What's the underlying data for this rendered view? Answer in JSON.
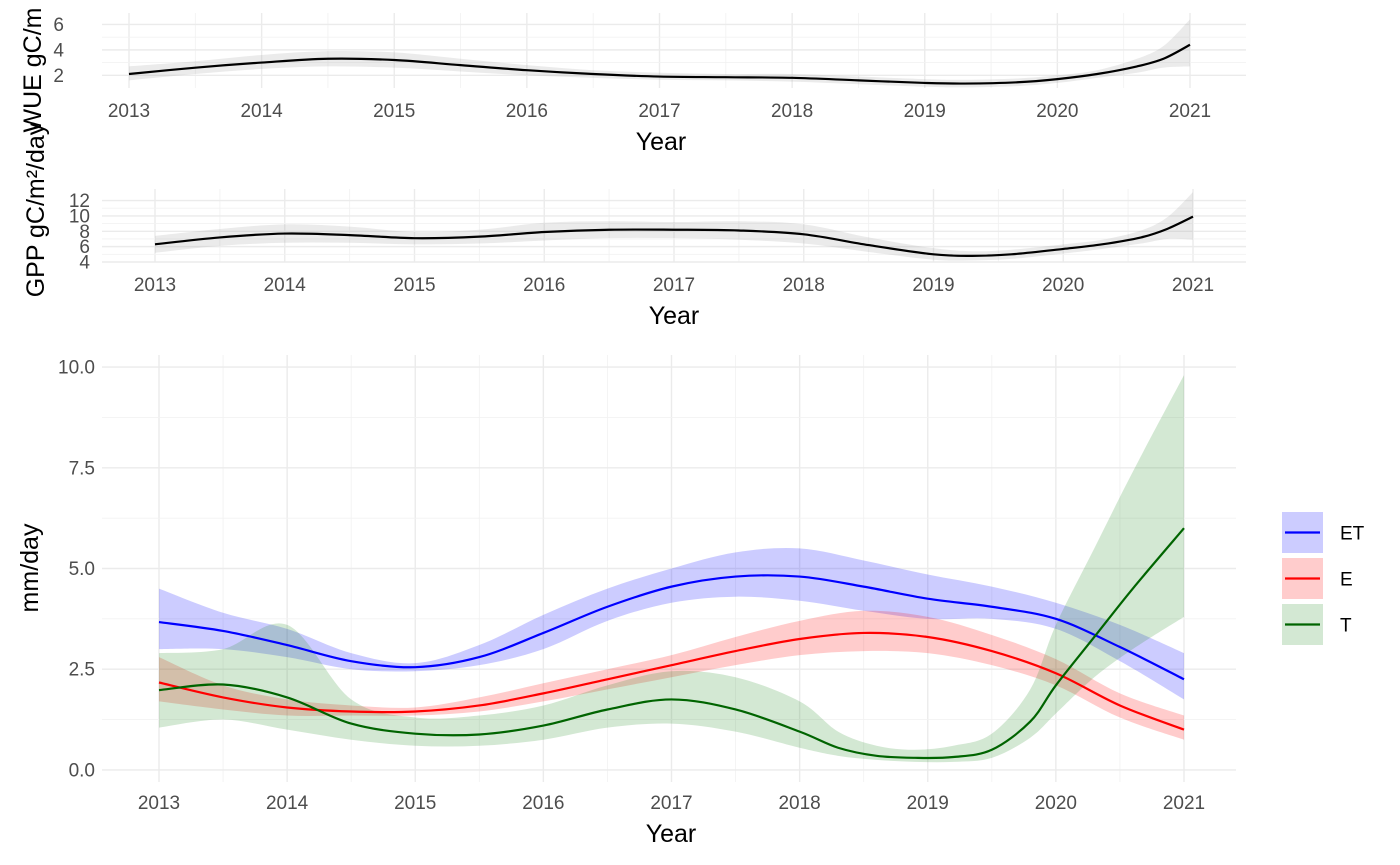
{
  "chart_data": [
    {
      "type": "line",
      "panel": "wue",
      "xlabel": "Year",
      "ylabel": "WUE gC/m",
      "x_ticks": [
        "2013",
        "2014",
        "2015",
        "2016",
        "2017",
        "2018",
        "2019",
        "2020",
        "2021"
      ],
      "y_ticks": [
        "2",
        "4",
        "6"
      ],
      "xlim": [
        2013,
        2021
      ],
      "ylim": [
        1.0,
        6.9
      ],
      "grid": true,
      "series": [
        {
          "color": "#000000",
          "band_color": "#999999",
          "x": [
            2013,
            2013.5,
            2014,
            2014.5,
            2015,
            2015.5,
            2016,
            2016.5,
            2017,
            2017.5,
            2018,
            2018.5,
            2019,
            2019.3,
            2019.7,
            2020,
            2020.3,
            2020.6,
            2020.8,
            2021
          ],
          "y": [
            2.1,
            2.6,
            3.0,
            3.3,
            3.2,
            2.8,
            2.4,
            2.1,
            1.9,
            1.85,
            1.8,
            1.6,
            1.4,
            1.35,
            1.45,
            1.7,
            2.1,
            2.7,
            3.3,
            4.4
          ],
          "lower": [
            1.6,
            2.1,
            2.5,
            2.7,
            2.6,
            2.3,
            2.0,
            1.8,
            1.65,
            1.6,
            1.5,
            1.3,
            1.1,
            1.05,
            1.15,
            1.4,
            1.8,
            2.2,
            2.6,
            2.7
          ],
          "upper": [
            2.7,
            3.1,
            3.6,
            3.9,
            3.8,
            3.3,
            2.8,
            2.4,
            2.2,
            2.1,
            2.1,
            1.9,
            1.7,
            1.65,
            1.75,
            2.0,
            2.4,
            3.3,
            4.3,
            6.4
          ]
        }
      ]
    },
    {
      "type": "line",
      "panel": "gpp",
      "xlabel": "Year",
      "ylabel": "GPP gC/m²/day",
      "x_ticks": [
        "2013",
        "2014",
        "2015",
        "2016",
        "2017",
        "2018",
        "2019",
        "2020",
        "2021"
      ],
      "y_ticks": [
        "4",
        "6",
        "8",
        "10",
        "12"
      ],
      "xlim": [
        2013,
        2021
      ],
      "ylim": [
        4,
        13.5
      ],
      "grid": true,
      "series": [
        {
          "color": "#000000",
          "band_color": "#999999",
          "x": [
            2013,
            2013.5,
            2014,
            2014.5,
            2015,
            2015.5,
            2016,
            2016.5,
            2017,
            2017.5,
            2018,
            2018.5,
            2019,
            2019.3,
            2019.6,
            2020,
            2020.3,
            2020.6,
            2020.8,
            2021
          ],
          "y": [
            6.3,
            7.2,
            7.7,
            7.5,
            7.1,
            7.3,
            7.9,
            8.2,
            8.2,
            8.1,
            7.6,
            6.2,
            5.0,
            4.8,
            5.0,
            5.7,
            6.3,
            7.2,
            8.3,
            9.9
          ],
          "lower": [
            5.2,
            6.1,
            6.5,
            6.5,
            6.3,
            6.4,
            6.8,
            7.1,
            7.1,
            6.9,
            6.4,
            5.3,
            4.3,
            4.2,
            4.4,
            5.1,
            5.7,
            6.4,
            7.0,
            6.9
          ],
          "upper": [
            7.4,
            8.3,
            8.9,
            8.6,
            7.9,
            8.2,
            9.1,
            9.3,
            9.2,
            9.3,
            8.9,
            7.2,
            5.8,
            5.4,
            5.6,
            6.3,
            6.9,
            8.1,
            9.8,
            13.1
          ]
        }
      ]
    },
    {
      "type": "line",
      "panel": "et",
      "xlabel": "Year",
      "ylabel": "mm/day",
      "x_ticks": [
        "2013",
        "2014",
        "2015",
        "2016",
        "2017",
        "2018",
        "2019",
        "2020",
        "2021"
      ],
      "y_ticks": [
        "0.0",
        "2.5",
        "5.0",
        "7.5",
        "10.0"
      ],
      "xlim": [
        2013,
        2021
      ],
      "ylim": [
        -0.3,
        10.3
      ],
      "grid": true,
      "legend_position": "right",
      "series": [
        {
          "name": "ET",
          "color": "#0000ff",
          "band_color": "#0000ff",
          "x": [
            2013,
            2013.5,
            2014,
            2014.5,
            2015,
            2015.5,
            2016,
            2016.5,
            2017,
            2017.5,
            2018,
            2018.5,
            2019,
            2019.5,
            2020,
            2020.5,
            2021
          ],
          "y": [
            3.67,
            3.45,
            3.1,
            2.7,
            2.55,
            2.8,
            3.4,
            4.05,
            4.55,
            4.8,
            4.8,
            4.55,
            4.25,
            4.05,
            3.75,
            3.05,
            2.25
          ],
          "lower": [
            3.0,
            3.0,
            2.8,
            2.5,
            2.45,
            2.6,
            3.0,
            3.7,
            4.15,
            4.3,
            4.2,
            3.95,
            3.75,
            3.75,
            3.5,
            2.7,
            1.75
          ],
          "upper": [
            4.5,
            3.9,
            3.5,
            2.9,
            2.65,
            3.1,
            3.85,
            4.5,
            5.0,
            5.4,
            5.5,
            5.2,
            4.85,
            4.55,
            4.15,
            3.6,
            2.9
          ]
        },
        {
          "name": "E",
          "color": "#ff0000",
          "band_color": "#ff0000",
          "x": [
            2013,
            2013.5,
            2014,
            2014.5,
            2015,
            2015.5,
            2016,
            2016.5,
            2017,
            2017.5,
            2018,
            2018.5,
            2019,
            2019.5,
            2020,
            2020.5,
            2021
          ],
          "y": [
            2.17,
            1.8,
            1.55,
            1.45,
            1.45,
            1.6,
            1.9,
            2.25,
            2.6,
            2.95,
            3.25,
            3.4,
            3.3,
            2.95,
            2.4,
            1.6,
            1.0
          ],
          "lower": [
            1.7,
            1.5,
            1.35,
            1.35,
            1.35,
            1.45,
            1.7,
            2.0,
            2.3,
            2.6,
            2.85,
            2.95,
            2.9,
            2.6,
            2.1,
            1.3,
            0.75
          ],
          "upper": [
            2.8,
            2.1,
            1.75,
            1.6,
            1.55,
            1.8,
            2.15,
            2.5,
            2.85,
            3.3,
            3.7,
            3.95,
            3.8,
            3.35,
            2.75,
            1.9,
            1.35
          ]
        },
        {
          "name": "T",
          "color": "#006400",
          "band_color": "#228b22",
          "x": [
            2013,
            2013.5,
            2014,
            2014.5,
            2015,
            2015.5,
            2016,
            2016.5,
            2017,
            2017.5,
            2018,
            2018.3,
            2018.6,
            2018.9,
            2019.2,
            2019.5,
            2019.8,
            2020,
            2020.3,
            2020.6,
            2021
          ],
          "y": [
            1.98,
            2.12,
            1.8,
            1.15,
            0.9,
            0.88,
            1.1,
            1.5,
            1.75,
            1.5,
            0.95,
            0.55,
            0.35,
            0.3,
            0.32,
            0.5,
            1.2,
            2.1,
            3.3,
            4.5,
            6.0
          ],
          "lower": [
            1.05,
            1.25,
            1.0,
            0.75,
            0.6,
            0.6,
            0.75,
            1.05,
            1.15,
            0.95,
            0.55,
            0.35,
            0.25,
            0.2,
            0.2,
            0.3,
            0.8,
            1.4,
            2.3,
            3.0,
            3.8
          ],
          "upper": [
            2.9,
            3.0,
            3.6,
            1.75,
            1.3,
            1.35,
            1.6,
            2.1,
            2.45,
            2.3,
            1.7,
            0.95,
            0.6,
            0.5,
            0.6,
            0.9,
            2.0,
            3.6,
            5.5,
            7.4,
            9.8
          ]
        }
      ]
    }
  ]
}
